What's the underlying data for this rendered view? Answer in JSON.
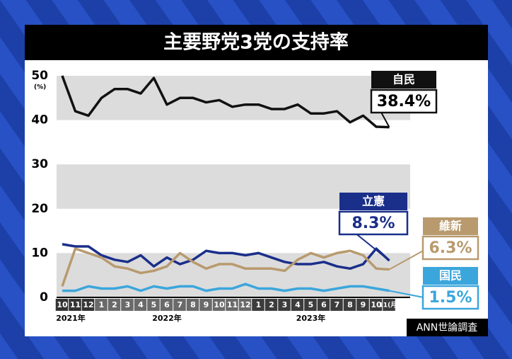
{
  "chart_data": {
    "type": "line",
    "title": "主要野党3党の支持率",
    "y_unit": "(%)",
    "source": "ANN世論調査",
    "categories": [
      "10",
      "11",
      "12",
      "1",
      "2",
      "3",
      "4",
      "5",
      "6",
      "7",
      "8",
      "9",
      "10",
      "11",
      "12",
      "1",
      "2",
      "3",
      "4",
      "5",
      "6",
      "7",
      "8",
      "9",
      "10",
      "11(月)"
    ],
    "years": [
      "2021年",
      "2022年",
      "2023年"
    ],
    "ylim": [
      0,
      50
    ],
    "yticks": [
      0,
      10,
      20,
      30,
      40,
      50
    ],
    "grid": true,
    "series": [
      {
        "name": "自民",
        "color": "#111111",
        "values": [
          50,
          42,
          41,
          45,
          47,
          47,
          46,
          49.5,
          43.5,
          45,
          45,
          44,
          44.5,
          43,
          43.5,
          43.5,
          42.5,
          42.5,
          43.5,
          41.5,
          41.5,
          42,
          39.5,
          41,
          38.5,
          38.4
        ],
        "value_labels": [
          null,
          null,
          null,
          null,
          null,
          null,
          null,
          null,
          null,
          null,
          null,
          null,
          null,
          null,
          null,
          null,
          null,
          null,
          null,
          null,
          null,
          null,
          null,
          null,
          null,
          "38.4%"
        ]
      },
      {
        "name": "立憲",
        "color": "#1a2f8a",
        "values": [
          12,
          11.5,
          11.5,
          9.5,
          8.5,
          8,
          9.5,
          7,
          9,
          7.5,
          8.5,
          10.5,
          10,
          10,
          9.5,
          10,
          9,
          8,
          7.5,
          7.5,
          8,
          7,
          6.5,
          7.5,
          11,
          8.3
        ],
        "value_labels": [
          null,
          null,
          null,
          null,
          null,
          null,
          null,
          null,
          null,
          null,
          null,
          null,
          null,
          null,
          null,
          null,
          null,
          null,
          null,
          null,
          null,
          null,
          null,
          null,
          null,
          "8.3%"
        ]
      },
      {
        "name": "維新",
        "color": "#b89a6e",
        "values": [
          2.5,
          11,
          10,
          9,
          7,
          6.5,
          5.5,
          6,
          7,
          10,
          8,
          6.5,
          7.5,
          7.5,
          6.5,
          6.5,
          6.5,
          6,
          8.5,
          10,
          9,
          10,
          10.5,
          9.5,
          6.5,
          6.3
        ],
        "value_labels": [
          null,
          null,
          null,
          null,
          null,
          null,
          null,
          null,
          null,
          null,
          null,
          null,
          null,
          null,
          null,
          null,
          null,
          null,
          null,
          null,
          null,
          null,
          null,
          null,
          null,
          "6.3%"
        ]
      },
      {
        "name": "国民",
        "color": "#3ba6dc",
        "values": [
          1.5,
          1.5,
          2.5,
          2,
          2,
          2.5,
          1.5,
          2.5,
          2,
          2.5,
          2.5,
          1.5,
          2,
          2,
          3,
          2,
          2,
          1.5,
          2,
          2,
          1.5,
          2,
          2.5,
          2.5,
          2,
          1.5
        ],
        "value_labels": [
          null,
          null,
          null,
          null,
          null,
          null,
          null,
          null,
          null,
          null,
          null,
          null,
          null,
          null,
          null,
          null,
          null,
          null,
          null,
          null,
          null,
          null,
          null,
          null,
          null,
          "1.5%"
        ]
      }
    ]
  }
}
